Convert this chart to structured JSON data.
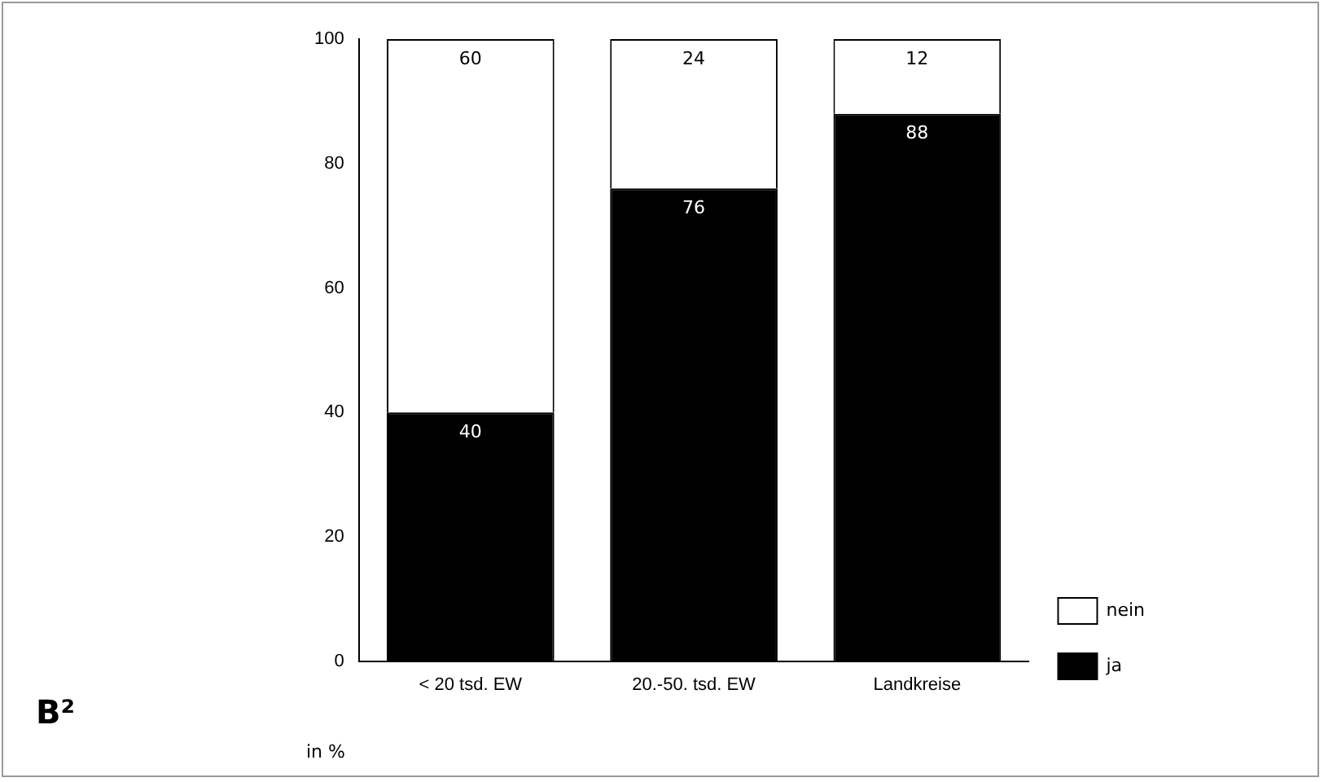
{
  "chart_data": {
    "type": "bar",
    "stacked": true,
    "categories": [
      "< 20 tsd. EW",
      "20.-50. tsd. EW",
      "Landkreise"
    ],
    "series": [
      {
        "name": "ja",
        "color": "#000000",
        "values": [
          40,
          76,
          88
        ]
      },
      {
        "name": "nein",
        "color": "#ffffff",
        "values": [
          60,
          24,
          12
        ]
      }
    ],
    "ylim": [
      0,
      100
    ],
    "yticks": [
      0,
      20,
      40,
      60,
      80,
      100
    ],
    "grid": false,
    "legend": "bottom right",
    "data_labels": true,
    "annotations": [
      "B²",
      "in %"
    ]
  }
}
